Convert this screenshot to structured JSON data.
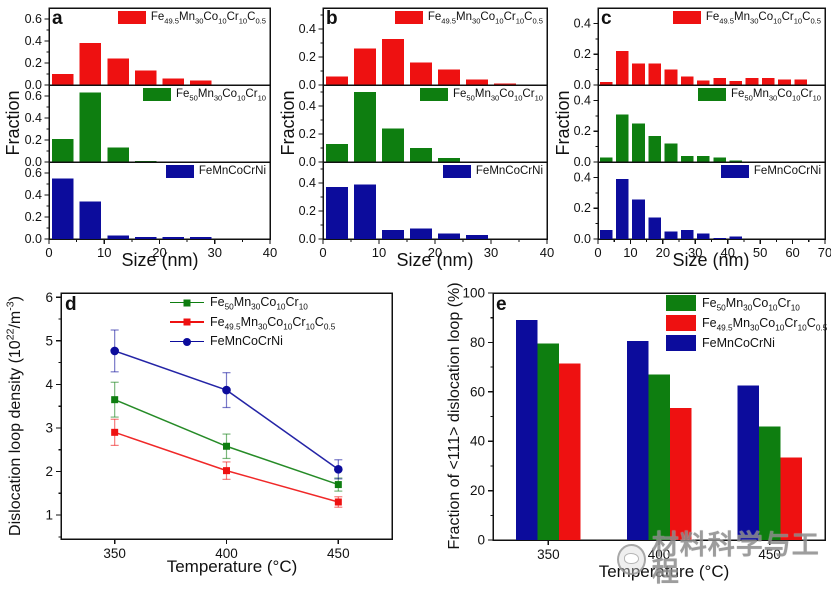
{
  "colors": {
    "red": "#ee1111",
    "green": "#0e7e10",
    "blue": "#0c0c9c",
    "frame": "#111111",
    "watermark": "#8c8c8c"
  },
  "alloys": {
    "carbon": "Fe_{49.5}Mn_{30}Co_{10}Cr_{10}C_{0.5}",
    "base": "Fe_{50}Mn_{30}Co_{10}Cr_{10}",
    "cantor": "FeMnCoCrNi"
  },
  "watermark": {
    "text": "材料科学与工程"
  },
  "chart_data": [
    {
      "id": "a",
      "type": "bar",
      "panel_label": "a",
      "xlabel": "Size (nm)",
      "ylabel": "Fraction",
      "xlim": [
        0,
        40
      ],
      "xticks": [
        0,
        10,
        20,
        30,
        40
      ],
      "x_minor_step": 5,
      "bin_width": 5,
      "ylim": [
        0,
        0.7
      ],
      "yticks": [
        0.0,
        0.2,
        0.4,
        0.6
      ],
      "y_minor_step": 0.1,
      "subpanels": [
        {
          "alloy": "carbon",
          "color": "red",
          "values": [
            0.1,
            0.38,
            0.24,
            0.13,
            0.06,
            0.04
          ]
        },
        {
          "alloy": "base",
          "color": "green",
          "values": [
            0.21,
            0.63,
            0.13,
            0.01
          ]
        },
        {
          "alloy": "cantor",
          "color": "blue",
          "values": [
            0.55,
            0.34,
            0.03,
            0.02,
            0.02,
            0.02
          ]
        }
      ]
    },
    {
      "id": "b",
      "type": "bar",
      "panel_label": "b",
      "xlabel": "Size (nm)",
      "ylabel": "Fraction",
      "xlim": [
        0,
        40
      ],
      "xticks": [
        0,
        10,
        20,
        30,
        40
      ],
      "x_minor_step": 5,
      "bin_width": 5,
      "ylim": [
        0,
        0.55
      ],
      "yticks": [
        0.0,
        0.2,
        0.4
      ],
      "y_minor_step": 0.1,
      "subpanels": [
        {
          "alloy": "carbon",
          "color": "red",
          "values": [
            0.06,
            0.26,
            0.33,
            0.16,
            0.11,
            0.04,
            0.01
          ]
        },
        {
          "alloy": "base",
          "color": "green",
          "values": [
            0.13,
            0.5,
            0.24,
            0.1,
            0.03
          ]
        },
        {
          "alloy": "cantor",
          "color": "blue",
          "values": [
            0.37,
            0.39,
            0.065,
            0.075,
            0.04,
            0.03
          ]
        }
      ]
    },
    {
      "id": "c",
      "type": "bar",
      "panel_label": "c",
      "xlabel": "Size (nm)",
      "ylabel": "Fraction",
      "xlim": [
        0,
        70
      ],
      "xticks": [
        0,
        10,
        20,
        30,
        40,
        50,
        60,
        70
      ],
      "x_minor_step": 5,
      "bin_width": 5,
      "ylim": [
        0,
        0.5
      ],
      "yticks": [
        0.0,
        0.2,
        0.4
      ],
      "y_minor_step": 0.1,
      "subpanels": [
        {
          "alloy": "carbon",
          "color": "red",
          "values": [
            0.02,
            0.22,
            0.14,
            0.14,
            0.1,
            0.055,
            0.03,
            0.045,
            0.025,
            0.045,
            0.045,
            0.035,
            0.035
          ]
        },
        {
          "alloy": "base",
          "color": "green",
          "values": [
            0.03,
            0.31,
            0.25,
            0.17,
            0.12,
            0.04,
            0.04,
            0.03,
            0.01
          ]
        },
        {
          "alloy": "cantor",
          "color": "blue",
          "values": [
            0.06,
            0.39,
            0.255,
            0.14,
            0.05,
            0.06,
            0.035,
            0.005,
            0.015
          ]
        }
      ]
    },
    {
      "id": "d",
      "type": "line",
      "panel_label": "d",
      "xlabel": "Temperature (°C)",
      "ylabel": "Dislocation loop density (10^{22}/m^{-3})",
      "x": [
        350,
        400,
        450
      ],
      "xlim": [
        326,
        474
      ],
      "ylim": [
        0.45,
        6.1
      ],
      "yticks": [
        1,
        2,
        3,
        4,
        5,
        6
      ],
      "y_minor_step": 0.5,
      "series": [
        {
          "alloy": "base",
          "color": "green",
          "marker": "square",
          "values": [
            3.65,
            2.58,
            1.7
          ],
          "errors": [
            0.4,
            0.28,
            0.15
          ]
        },
        {
          "alloy": "carbon",
          "color": "red",
          "marker": "square",
          "values": [
            2.9,
            2.02,
            1.3
          ],
          "errors": [
            0.3,
            0.2,
            0.12
          ]
        },
        {
          "alloy": "cantor",
          "color": "blue",
          "marker": "circle",
          "values": [
            4.77,
            3.87,
            2.05
          ],
          "errors": [
            0.48,
            0.4,
            0.22
          ]
        }
      ],
      "legend_order": [
        0,
        1,
        2
      ]
    },
    {
      "id": "e",
      "type": "grouped-bar",
      "panel_label": "e",
      "xlabel": "Temperature (°C)",
      "ylabel": "Fraction of <111> dislocation loop (%)",
      "categories": [
        "350",
        "400",
        "450"
      ],
      "ylim": [
        0,
        100
      ],
      "yticks": [
        0,
        20,
        40,
        60,
        80,
        100
      ],
      "y_minor_step": 10,
      "series": [
        {
          "alloy": "cantor",
          "color": "blue",
          "values": [
            89,
            80.5,
            62.5
          ]
        },
        {
          "alloy": "base",
          "color": "green",
          "values": [
            79.5,
            67,
            46
          ]
        },
        {
          "alloy": "carbon",
          "color": "red",
          "values": [
            71.5,
            53.5,
            33.5
          ]
        }
      ],
      "legend_order": [
        1,
        2,
        0
      ]
    }
  ]
}
